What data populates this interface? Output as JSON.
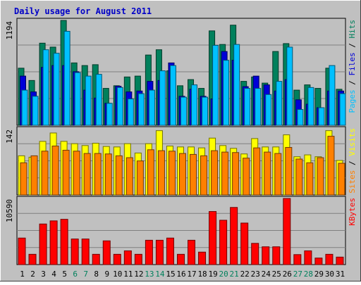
{
  "chart_data": {
    "type": "bar",
    "title": "Daily usage for August 2011",
    "categories": [
      "1",
      "2",
      "3",
      "4",
      "5",
      "6",
      "7",
      "8",
      "9",
      "10",
      "11",
      "12",
      "13",
      "14",
      "15",
      "16",
      "17",
      "18",
      "19",
      "20",
      "21",
      "22",
      "23",
      "24",
      "25",
      "26",
      "27",
      "28",
      "29",
      "30",
      "31"
    ],
    "weekend_days": [
      "6",
      "7",
      "13",
      "14",
      "20",
      "21",
      "27",
      "28"
    ],
    "panels": [
      {
        "name": "hits-files-pages",
        "ymax_label": "1194",
        "ymax": 1194,
        "legend": [
          "Pages",
          "Files",
          "Hits"
        ],
        "series": [
          {
            "name": "Hits",
            "color": "#00805c",
            "values": [
              650,
              510,
              935,
              890,
              1194,
              710,
              680,
              690,
              420,
              450,
              550,
              560,
              800,
              860,
              620,
              450,
              520,
              420,
              1075,
              920,
              1140,
              500,
              550,
              480,
              840,
              930,
              400,
              460,
              420,
              650,
              410
            ]
          },
          {
            "name": "Files",
            "color": "#0000d8",
            "values": [
              560,
              380,
              660,
              680,
              680,
              610,
              400,
              310,
              250,
              445,
              380,
              390,
              500,
              510,
              710,
              330,
              410,
              330,
              300,
              840,
              740,
              440,
              560,
              460,
              390,
              520,
              290,
              240,
              200,
              390,
              390
            ]
          },
          {
            "name": "Pages",
            "color": "#00c0ff",
            "values": [
              400,
              330,
              860,
              820,
              1070,
              600,
              560,
              580,
              250,
              430,
              300,
              360,
              400,
              620,
              680,
              320,
              460,
              320,
              910,
              740,
              920,
              420,
              420,
              350,
              500,
              890,
              180,
              430,
              200,
              680,
              360
            ]
          }
        ]
      },
      {
        "name": "visits-sites",
        "ymax_label": "142",
        "ymax": 142,
        "legend": [
          "Sites",
          "Visits"
        ],
        "series": [
          {
            "name": "Visits",
            "color": "#ffff00",
            "values": [
              84,
              81,
              115,
              133,
              115,
              110,
              106,
              111,
              104,
              103,
              110,
              90,
              110,
              138,
              105,
              103,
              103,
              101,
              122,
              106,
              100,
              88,
              121,
              103,
              103,
              129,
              82,
              86,
              82,
              138,
              74
            ]
          },
          {
            "name": "Sites",
            "color": "#ff8000",
            "values": [
              69,
              84,
              94,
              105,
              96,
              94,
              89,
              89,
              88,
              84,
              80,
              73,
              97,
              95,
              94,
              89,
              87,
              84,
              95,
              92,
              91,
              79,
              101,
              92,
              89,
              102,
              77,
              69,
              80,
              126,
              68
            ]
          }
        ]
      },
      {
        "name": "kbytes",
        "ymax_label": "10590",
        "ymax": 10590,
        "legend": [
          "KBytes"
        ],
        "series": [
          {
            "name": "KBytes",
            "color": "#ff0000",
            "values": [
              4250,
              1650,
              6500,
              7000,
              7250,
              4100,
              4100,
              1650,
              3800,
              1650,
              2200,
              1650,
              3900,
              3900,
              4250,
              1650,
              3900,
              2000,
              8500,
              7100,
              9150,
              6650,
              3400,
              2850,
              2850,
              10590,
              1600,
              2200,
              1050,
              1650,
              1200
            ]
          }
        ]
      }
    ]
  }
}
